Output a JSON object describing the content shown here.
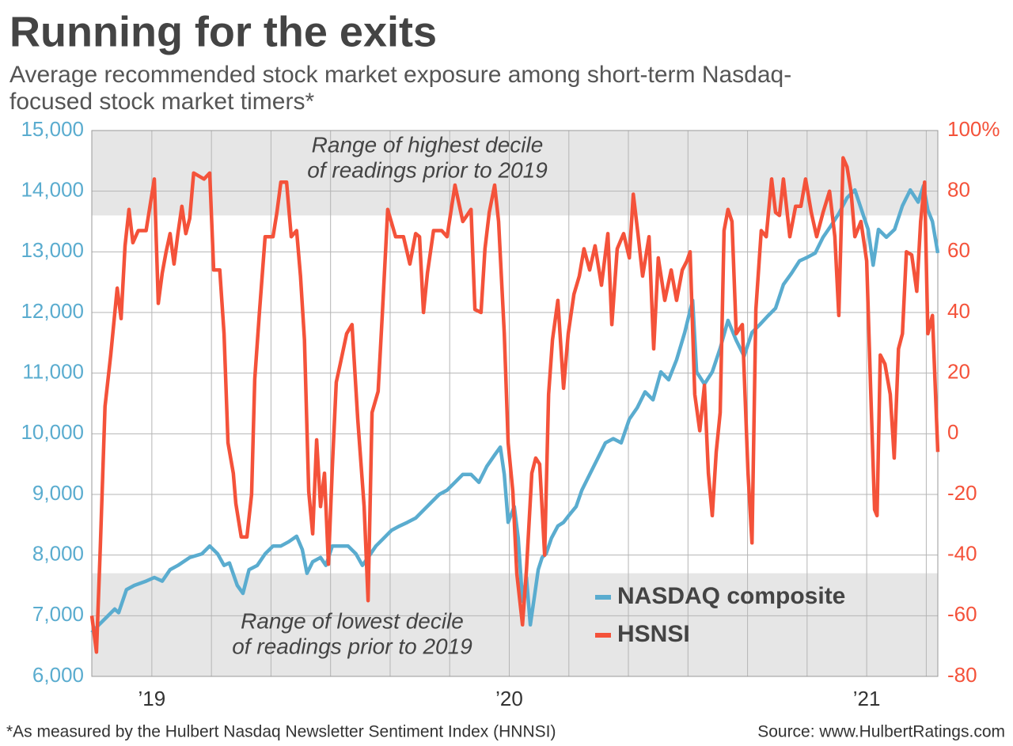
{
  "chart_data": {
    "type": "line",
    "title": "Running for the exits",
    "subtitle": [
      "Average recommended stock market exposure among short-term Nasdaq-",
      "focused stock market timers*"
    ],
    "footnote": "*As measured by the Hulbert Nasdaq Newsletter Sentiment Index (HNNSI)",
    "source": "Source: www.HulbertRatings.com",
    "xlim": [
      2018.832,
      2021.199
    ],
    "xticks": [
      {
        "value": 2019,
        "label": "’19"
      },
      {
        "value": 2020,
        "label": "’20"
      },
      {
        "value": 2021,
        "label": "’21"
      }
    ],
    "xgrid": [
      2019,
      2019.1667,
      2019.3333,
      2019.5,
      2019.6667,
      2019.8333,
      2020,
      2020.1667,
      2020.3333,
      2020.5,
      2020.6667,
      2020.8333,
      2021,
      2021.1667
    ],
    "ylim": [
      6000,
      15000
    ],
    "yticks": [
      {
        "value": 6000,
        "label": "6,000"
      },
      {
        "value": 7000,
        "label": "7,000"
      },
      {
        "value": 8000,
        "label": "8,000"
      },
      {
        "value": 9000,
        "label": "9,000"
      },
      {
        "value": 10000,
        "label": "10,000"
      },
      {
        "value": 11000,
        "label": "11,000"
      },
      {
        "value": 12000,
        "label": "12,000"
      },
      {
        "value": 13000,
        "label": "13,000"
      },
      {
        "value": 14000,
        "label": "14,000"
      },
      {
        "value": 15000,
        "label": "15,000"
      }
    ],
    "y2lim": [
      -80,
      100
    ],
    "y2ticks": [
      -80,
      -60,
      -40,
      -20,
      0,
      20,
      40,
      60,
      80,
      {
        "value": 100,
        "label": "100%"
      }
    ],
    "ycolor": "#5aaccf",
    "y2color": "#f4523a",
    "grid": true,
    "legend": "lower right",
    "bands": [
      {
        "axis": "y2",
        "range": [
          72,
          100
        ],
        "label": [
          "Range of highest decile",
          "of readings prior to 2019"
        ]
      },
      {
        "axis": "y2",
        "range": [
          -80,
          -46
        ],
        "label": [
          "Range of lowest decile",
          "of readings prior to 2019"
        ]
      }
    ],
    "series": [
      {
        "name": "NASDAQ composite",
        "color": "#5aaccf",
        "axis": "y",
        "x": [
          2018.832,
          2018.852,
          2018.874,
          2018.896,
          2018.907,
          2018.929,
          2018.951,
          2018.984,
          2019.007,
          2019.029,
          2019.051,
          2019.073,
          2019.106,
          2019.14,
          2019.162,
          2019.184,
          2019.202,
          2019.217,
          2019.239,
          2019.255,
          2019.272,
          2019.295,
          2019.317,
          2019.339,
          2019.361,
          2019.383,
          2019.405,
          2019.421,
          2019.434,
          2019.45,
          2019.472,
          2019.487,
          2019.505,
          2019.527,
          2019.549,
          2019.571,
          2019.589,
          2019.605,
          2019.627,
          2019.649,
          2019.671,
          2019.693,
          2019.715,
          2019.738,
          2019.76,
          2019.782,
          2019.804,
          2019.826,
          2019.848,
          2019.87,
          2019.893,
          2019.915,
          2019.937,
          2019.959,
          2019.975,
          2019.986,
          2019.997,
          2020.014,
          2020.025,
          2020.037,
          2020.048,
          2020.059,
          2020.07,
          2020.081,
          2020.092,
          2020.103,
          2020.118,
          2020.136,
          2020.152,
          2020.169,
          2020.187,
          2020.203,
          2020.225,
          2020.247,
          2020.269,
          2020.291,
          2020.313,
          2020.336,
          2020.358,
          2020.38,
          2020.402,
          2020.424,
          2020.446,
          2020.468,
          2020.491,
          2020.513,
          2020.524,
          2020.546,
          2020.568,
          2020.59,
          2020.612,
          2020.635,
          2020.657,
          2020.679,
          2020.701,
          2020.723,
          2020.745,
          2020.767,
          2020.79,
          2020.812,
          2020.834,
          2020.856,
          2020.878,
          2020.9,
          2020.922,
          2020.945,
          2020.967,
          2020.989,
          2021.004,
          2021.018,
          2021.033,
          2021.055,
          2021.078,
          2021.1,
          2021.122,
          2021.144,
          2021.159,
          2021.171,
          2021.184,
          2021.199
        ],
        "values": [
          6720,
          6850,
          6980,
          7110,
          7050,
          7430,
          7500,
          7570,
          7630,
          7570,
          7760,
          7830,
          7960,
          8020,
          8150,
          8020,
          7830,
          7870,
          7500,
          7370,
          7760,
          7830,
          8020,
          8150,
          8150,
          8220,
          8310,
          8090,
          7700,
          7890,
          7960,
          7830,
          8150,
          8150,
          8150,
          8020,
          7830,
          7960,
          8150,
          8280,
          8410,
          8480,
          8540,
          8610,
          8740,
          8870,
          9000,
          9070,
          9200,
          9330,
          9330,
          9200,
          9460,
          9650,
          9780,
          9330,
          8540,
          8800,
          8280,
          7240,
          7630,
          6850,
          7300,
          7760,
          7960,
          8020,
          8280,
          8480,
          8540,
          8670,
          8800,
          9070,
          9330,
          9590,
          9850,
          9920,
          9850,
          10240,
          10430,
          10690,
          10560,
          11020,
          10890,
          11220,
          11670,
          12200,
          11020,
          10820,
          11020,
          11410,
          11870,
          11540,
          11280,
          11670,
          11800,
          11940,
          12070,
          12460,
          12650,
          12850,
          12910,
          12980,
          13240,
          13430,
          13630,
          13890,
          14020,
          13630,
          13370,
          12780,
          13370,
          13240,
          13370,
          13760,
          14020,
          13820,
          14090,
          13690,
          13500,
          12980
        ]
      },
      {
        "name": "HSNSI",
        "color": "#f4523a",
        "axis": "y2",
        "x": [
          2018.832,
          2018.845,
          2018.856,
          2018.869,
          2018.885,
          2018.903,
          2018.914,
          2018.925,
          2018.936,
          2018.947,
          2018.962,
          2018.984,
          2019.007,
          2019.018,
          2019.029,
          2019.04,
          2019.051,
          2019.062,
          2019.073,
          2019.084,
          2019.095,
          2019.106,
          2019.117,
          2019.146,
          2019.162,
          2019.173,
          2019.19,
          2019.202,
          2019.213,
          2019.228,
          2019.235,
          2019.25,
          2019.266,
          2019.279,
          2019.288,
          2019.301,
          2019.317,
          2019.339,
          2019.35,
          2019.361,
          2019.377,
          2019.39,
          2019.405,
          2019.416,
          2019.427,
          2019.439,
          2019.45,
          2019.461,
          2019.472,
          2019.483,
          2019.494,
          2019.505,
          2019.516,
          2019.527,
          2019.545,
          2019.56,
          2019.576,
          2019.594,
          2019.605,
          2019.616,
          2019.633,
          2019.645,
          2019.66,
          2019.682,
          2019.704,
          2019.722,
          2019.738,
          2019.749,
          2019.76,
          2019.771,
          2019.788,
          2019.811,
          2019.826,
          2019.848,
          2019.87,
          2019.893,
          2019.904,
          2019.921,
          2019.932,
          2019.944,
          2019.959,
          2019.97,
          2019.986,
          2019.997,
          2020.01,
          2020.021,
          2020.037,
          2020.048,
          2020.063,
          2020.074,
          2020.085,
          2020.099,
          2020.11,
          2020.121,
          2020.136,
          2020.152,
          2020.165,
          2020.181,
          2020.196,
          2020.209,
          2020.225,
          2020.24,
          2020.258,
          2020.276,
          2020.287,
          2020.302,
          2020.32,
          2020.336,
          2020.347,
          2020.36,
          2020.373,
          2020.391,
          2020.404,
          2020.417,
          2020.435,
          2020.453,
          2020.468,
          2020.484,
          2020.497,
          2020.506,
          2020.519,
          2020.533,
          2020.546,
          2020.557,
          2020.568,
          2020.579,
          2020.59,
          2020.601,
          2020.612,
          2020.623,
          2020.635,
          2020.652,
          2020.668,
          2020.679,
          2020.69,
          2020.705,
          2020.719,
          2020.734,
          2020.745,
          2020.756,
          2020.767,
          2020.785,
          2020.801,
          2020.816,
          2020.829,
          2020.845,
          2020.86,
          2020.878,
          2020.896,
          2020.911,
          2020.922,
          2020.934,
          2020.945,
          2020.956,
          2020.967,
          2020.984,
          2021.0,
          2021.011,
          2021.022,
          2021.029,
          2021.038,
          2021.051,
          2021.066,
          2021.077,
          2021.089,
          2021.1,
          2021.111,
          2021.126,
          2021.14,
          2021.151,
          2021.162,
          2021.171,
          2021.184,
          2021.199
        ],
        "values": [
          -60,
          -72,
          -37,
          9,
          26,
          48,
          38,
          62,
          74,
          63,
          67,
          67,
          84,
          43,
          53,
          60,
          66,
          56,
          66,
          75,
          66,
          71,
          86,
          84,
          86,
          54,
          54,
          33,
          -3,
          -13,
          -23,
          -34,
          -34,
          -20,
          18,
          40,
          65,
          65,
          73,
          83,
          83,
          65,
          67,
          52,
          31,
          -19,
          -33,
          -2,
          -24,
          -13,
          -43,
          -11,
          17,
          23,
          33,
          36,
          5,
          -24,
          -55,
          7,
          14,
          40,
          74,
          65,
          65,
          56,
          66,
          65,
          40,
          53,
          67,
          67,
          65,
          82,
          70,
          74,
          41,
          40,
          61,
          73,
          82,
          70,
          33,
          -3,
          -19,
          -46,
          -63,
          -45,
          -13,
          -8,
          -10,
          -40,
          13,
          31,
          44,
          15,
          33,
          46,
          52,
          61,
          54,
          62,
          49,
          66,
          36,
          61,
          66,
          58,
          79,
          66,
          52,
          65,
          28,
          58,
          44,
          54,
          44,
          54,
          57,
          60,
          13,
          1,
          16,
          -13,
          -27,
          -6,
          7,
          67,
          74,
          70,
          33,
          36,
          -13,
          -36,
          41,
          67,
          65,
          84,
          73,
          72,
          84,
          65,
          75,
          75,
          84,
          73,
          65,
          73,
          80,
          65,
          39,
          91,
          88,
          80,
          65,
          70,
          57,
          15,
          -25,
          -27,
          26,
          23,
          13,
          -8,
          28,
          33,
          60,
          59,
          47,
          70,
          83,
          33,
          39,
          -6
        ]
      }
    ]
  }
}
